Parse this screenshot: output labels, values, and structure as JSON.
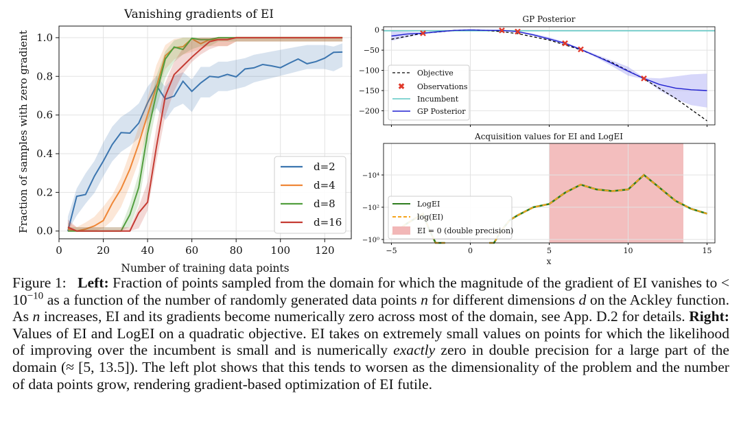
{
  "chart_data": [
    {
      "type": "line",
      "title": "Vanishing gradients of EI",
      "xlabel": "Number of training data points",
      "ylabel": "Fraction of samples with zero gradient",
      "xlim": [
        0,
        132
      ],
      "ylim": [
        -0.04,
        1.06
      ],
      "xticks": [
        0,
        20,
        40,
        60,
        80,
        100,
        120
      ],
      "xtick_labels": [
        "0",
        "20",
        "40",
        "60",
        "80",
        "100",
        "120"
      ],
      "yticks": [
        0.0,
        0.2,
        0.4,
        0.6,
        0.8,
        1.0
      ],
      "ytick_labels": [
        "0.0",
        "0.2",
        "0.4",
        "0.6",
        "0.8",
        "1.0"
      ],
      "grid": true,
      "legend_position": "lower-right",
      "x": [
        4,
        8,
        12,
        16,
        20,
        24,
        28,
        32,
        36,
        40,
        44,
        48,
        52,
        56,
        60,
        64,
        68,
        72,
        76,
        80,
        84,
        88,
        92,
        96,
        100,
        104,
        108,
        112,
        116,
        120,
        124,
        128
      ],
      "series": [
        {
          "name": "d=2",
          "color": "#3b75af",
          "values": [
            0.03,
            0.15,
            0.22,
            0.28,
            0.37,
            0.45,
            0.5,
            0.53,
            0.57,
            0.66,
            0.72,
            0.66,
            0.72,
            0.74,
            0.7,
            0.77,
            0.77,
            0.8,
            0.8,
            0.81,
            0.82,
            0.84,
            0.85,
            0.86,
            0.87,
            0.88,
            0.89,
            0.9,
            0.9,
            0.9,
            0.89,
            0.91
          ]
        },
        {
          "name": "d=4",
          "color": "#ef8636",
          "values": [
            0.01,
            0.0,
            0.01,
            0.03,
            0.07,
            0.12,
            0.2,
            0.32,
            0.45,
            0.6,
            0.78,
            0.9,
            0.94,
            0.96,
            0.97,
            0.98,
            0.99,
            0.99,
            0.99,
            1.0,
            1.0,
            1.0,
            1.0,
            1.0,
            1.0,
            1.0,
            1.0,
            1.0,
            1.0,
            1.0,
            1.0,
            1.0
          ]
        },
        {
          "name": "d=8",
          "color": "#519e3e",
          "values": [
            0.0,
            0.0,
            0.0,
            0.0,
            0.0,
            0.0,
            0.0,
            0.08,
            0.22,
            0.5,
            0.72,
            0.86,
            0.93,
            0.96,
            0.98,
            0.99,
            0.99,
            1.0,
            1.0,
            1.0,
            1.0,
            1.0,
            1.0,
            1.0,
            1.0,
            1.0,
            1.0,
            1.0,
            1.0,
            1.0,
            1.0,
            1.0
          ]
        },
        {
          "name": "d=16",
          "color": "#c53a32",
          "values": [
            0.02,
            0.0,
            0.0,
            0.0,
            0.0,
            0.0,
            0.0,
            0.0,
            0.07,
            0.18,
            0.45,
            0.68,
            0.8,
            0.88,
            0.93,
            0.96,
            0.98,
            0.99,
            0.99,
            1.0,
            1.0,
            1.0,
            1.0,
            1.0,
            1.0,
            1.0,
            1.0,
            1.0,
            1.0,
            1.0,
            1.0,
            1.0
          ]
        }
      ]
    },
    {
      "type": "line",
      "title": "GP Posterior",
      "xlim": [
        -5.5,
        15.5
      ],
      "ylim": [
        -235,
        8
      ],
      "yticks": [
        0,
        -50,
        -100,
        -150,
        -200
      ],
      "ytick_labels": [
        "0",
        "−50",
        "−100",
        "−150",
        "−200"
      ],
      "xticks": [
        -5,
        0,
        5,
        10,
        15
      ],
      "grid": true,
      "legend_position": "lower-left",
      "objective": {
        "name": "Objective",
        "color": "#000000",
        "style": "dashed",
        "x": [
          -5,
          -3,
          -1,
          0,
          1,
          2,
          3,
          5,
          7,
          9,
          11,
          13,
          15
        ],
        "y": [
          -23,
          -8,
          -1,
          0,
          -1,
          -4,
          -9,
          -25,
          -49,
          -81,
          -121,
          -169,
          -225
        ]
      },
      "observations": {
        "name": "Observations",
        "color": "#e0392b",
        "x": [
          -3,
          2,
          3,
          6,
          7,
          11
        ],
        "y": [
          -8,
          -1,
          -4,
          -33,
          -48,
          -120
        ]
      },
      "incumbent": {
        "name": "Incumbent",
        "color": "#5bc7c4",
        "y": -2
      },
      "posterior": {
        "name": "GP Posterior",
        "color": "#1f1fd0",
        "x": [
          -5,
          -4,
          -3,
          -2,
          -1,
          0,
          1,
          2,
          3,
          4,
          5,
          6,
          7,
          8,
          9,
          10,
          11,
          12,
          13,
          14,
          15
        ],
        "y": [
          -15,
          -10,
          -8,
          -4,
          -1,
          0,
          -1,
          -1,
          -4,
          -12,
          -22,
          -33,
          -48,
          -65,
          -83,
          -102,
          -120,
          -135,
          -144,
          -148,
          -150
        ],
        "upper": [
          -3,
          -4,
          -6,
          -2,
          0,
          2,
          1,
          0,
          -3,
          -9,
          -18,
          -30,
          -46,
          -61,
          -76,
          -91,
          -118,
          -120,
          -115,
          -110,
          -108
        ],
        "lower": [
          -27,
          -18,
          -10,
          -7,
          -3,
          -2,
          -3,
          -2,
          -5,
          -15,
          -26,
          -36,
          -50,
          -69,
          -90,
          -113,
          -122,
          -150,
          -171,
          -186,
          -192
        ]
      }
    },
    {
      "type": "line",
      "title": "Acquisition values for EI and LogEI",
      "xlabel": "x",
      "xlim": [
        -5.5,
        15.5
      ],
      "xticks": [
        -5,
        0,
        5,
        10,
        15
      ],
      "xtick_labels": [
        "−5",
        "0",
        "5",
        "10",
        "15"
      ],
      "yscale": "symlog",
      "ytick_labels": [
        "−10⁰",
        "−10²",
        "−10⁴"
      ],
      "grid": true,
      "legend_position": "lower-left",
      "ei_zero_region": {
        "name": "EI = 0 (double precision)",
        "color": "#f2b7b7",
        "x_range": [
          5,
          13.5
        ]
      },
      "series": [
        {
          "name": "LogEI",
          "color": "#2e7d1e",
          "style": "solid"
        },
        {
          "name": "log(EI)",
          "color": "#f5a31a",
          "style": "dashed"
        }
      ],
      "x": [
        -5,
        -4,
        -3,
        -2.6,
        -2.2,
        -1.6,
        1.2,
        1.5,
        2,
        2.5,
        3,
        4,
        5,
        6,
        7,
        8,
        9,
        10,
        11,
        12,
        13,
        14,
        15
      ],
      "log10_neg_value": [
        0.3,
        1.0,
        1.6,
        0.6,
        -0.6,
        -2.2,
        -2.2,
        -0.6,
        0.6,
        1.2,
        1.5,
        2.0,
        2.2,
        2.9,
        3.4,
        3.1,
        3.0,
        3.1,
        4.0,
        3.2,
        2.4,
        1.9,
        1.6
      ]
    }
  ],
  "caption": {
    "figure_label": "Figure 1:",
    "left_label": "Left:",
    "left_text_1": "Fraction of points sampled from the domain for which the magnitude of the gradient of EI vanishes to < 10",
    "left_exponent": "−10",
    "left_text_2": " as a function of the number of randomly generated data points",
    "left_n": "n",
    "left_text_3": " for different dimensions ",
    "left_d": "d",
    "left_text_4": " on the Ackley function. As ",
    "left_n2": "n",
    "left_text_5": " increases, EI and its gradients become numerically zero across most of the domain, see App. D.2 for details. ",
    "right_label": "Right:",
    "right_text_1": " Values of EI and LogEI on a quadratic objective. EI takes on extremely small values on points for which the likelihood of improving over the incumbent is small and is numerically ",
    "right_exactly": "exactly",
    "right_text_2": " zero in double precision for a large part of the domain (≈ [5, 13.5]). The left plot shows that this tends to worsen as the dimensionality of the problem and the number of data points grow, rendering gradient-based optimization of EI futile."
  }
}
